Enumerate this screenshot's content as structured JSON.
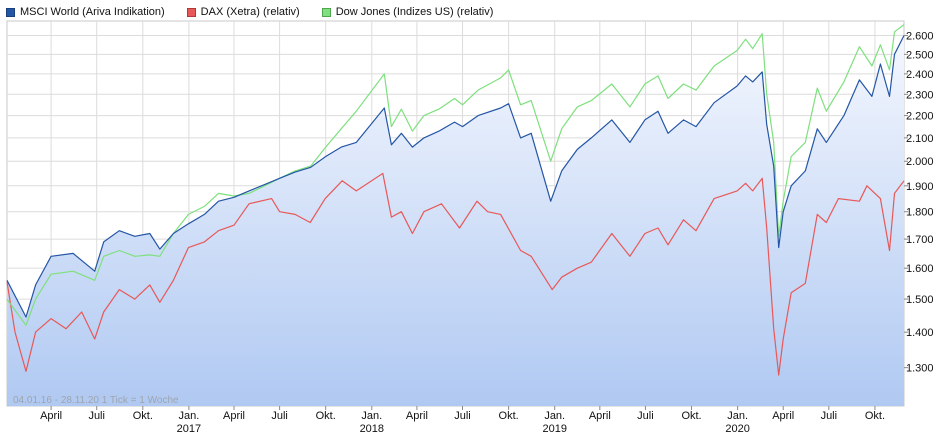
{
  "chart_data": {
    "type": "line",
    "legend": [
      {
        "label": "MSCI World (Ariva Indikation)",
        "color": "#2456a6"
      },
      {
        "label": "DAX (Xetra) (relativ)",
        "color": "#e85858"
      },
      {
        "label": "Dow Jones (Indizes US) (relativ)",
        "color": "#7ee07e"
      }
    ],
    "info_text": "04.01.16 - 28.11.20   1 Tick = 1 Woche",
    "y_axis": {
      "position": "right",
      "scale": "log",
      "range": [
        1200,
        2680
      ],
      "ticks": [
        1300,
        1400,
        1500,
        1600,
        1700,
        1800,
        1900,
        2000,
        2100,
        2200,
        2300,
        2400,
        2500,
        2600
      ],
      "tick_labels": [
        "1.300",
        "1.400",
        "1.500",
        "1.600",
        "1.700",
        "1.800",
        "1.900",
        "2.000",
        "2.100",
        "2.200",
        "2.300",
        "2.400",
        "2.500",
        "2.600"
      ]
    },
    "x_axis": {
      "range": [
        "2016-01-04",
        "2020-11-28"
      ],
      "ticks": [
        {
          "date": "2016-04-01",
          "label": "April",
          "year": ""
        },
        {
          "date": "2016-07-01",
          "label": "Juli",
          "year": ""
        },
        {
          "date": "2016-10-01",
          "label": "Okt.",
          "year": ""
        },
        {
          "date": "2017-01-01",
          "label": "Jan.",
          "year": "2017"
        },
        {
          "date": "2017-04-01",
          "label": "April",
          "year": ""
        },
        {
          "date": "2017-07-01",
          "label": "Juli",
          "year": ""
        },
        {
          "date": "2017-10-01",
          "label": "Okt.",
          "year": ""
        },
        {
          "date": "2018-01-01",
          "label": "Jan.",
          "year": "2018"
        },
        {
          "date": "2018-04-01",
          "label": "April",
          "year": ""
        },
        {
          "date": "2018-07-01",
          "label": "Juli",
          "year": ""
        },
        {
          "date": "2018-10-01",
          "label": "Okt.",
          "year": ""
        },
        {
          "date": "2019-01-01",
          "label": "Jan.",
          "year": "2019"
        },
        {
          "date": "2019-04-01",
          "label": "April",
          "year": ""
        },
        {
          "date": "2019-07-01",
          "label": "Juli",
          "year": ""
        },
        {
          "date": "2019-10-01",
          "label": "Okt.",
          "year": ""
        },
        {
          "date": "2020-01-01",
          "label": "Jan.",
          "year": "2020"
        },
        {
          "date": "2020-04-01",
          "label": "April",
          "year": ""
        },
        {
          "date": "2020-07-01",
          "label": "Juli",
          "year": ""
        },
        {
          "date": "2020-10-01",
          "label": "Okt.",
          "year": ""
        }
      ]
    },
    "grid": true,
    "legend_position": "top-left",
    "series": [
      {
        "name": "MSCI World (Ariva Indikation)",
        "color": "#2456a6",
        "filled": true,
        "points": [
          [
            "2016-01-04",
            1560
          ],
          [
            "2016-02-11",
            1445
          ],
          [
            "2016-03-01",
            1545
          ],
          [
            "2016-04-01",
            1640
          ],
          [
            "2016-05-15",
            1650
          ],
          [
            "2016-06-27",
            1590
          ],
          [
            "2016-07-15",
            1690
          ],
          [
            "2016-08-15",
            1730
          ],
          [
            "2016-09-15",
            1710
          ],
          [
            "2016-10-15",
            1720
          ],
          [
            "2016-11-04",
            1665
          ],
          [
            "2016-12-01",
            1720
          ],
          [
            "2016-12-31",
            1755
          ],
          [
            "2017-02-01",
            1790
          ],
          [
            "2017-03-01",
            1840
          ],
          [
            "2017-04-01",
            1855
          ],
          [
            "2017-05-01",
            1880
          ],
          [
            "2017-06-01",
            1905
          ],
          [
            "2017-07-01",
            1930
          ],
          [
            "2017-08-01",
            1955
          ],
          [
            "2017-09-01",
            1975
          ],
          [
            "2017-10-01",
            2020
          ],
          [
            "2017-11-01",
            2060
          ],
          [
            "2017-12-01",
            2080
          ],
          [
            "2018-01-26",
            2235
          ],
          [
            "2018-02-09",
            2070
          ],
          [
            "2018-03-01",
            2120
          ],
          [
            "2018-03-23",
            2060
          ],
          [
            "2018-04-15",
            2100
          ],
          [
            "2018-05-15",
            2130
          ],
          [
            "2018-06-15",
            2170
          ],
          [
            "2018-07-01",
            2150
          ],
          [
            "2018-08-01",
            2200
          ],
          [
            "2018-09-15",
            2235
          ],
          [
            "2018-10-01",
            2255
          ],
          [
            "2018-10-25",
            2100
          ],
          [
            "2018-11-15",
            2120
          ],
          [
            "2018-12-24",
            1840
          ],
          [
            "2019-01-15",
            1960
          ],
          [
            "2019-02-15",
            2050
          ],
          [
            "2019-03-15",
            2100
          ],
          [
            "2019-04-25",
            2180
          ],
          [
            "2019-05-31",
            2080
          ],
          [
            "2019-06-30",
            2180
          ],
          [
            "2019-07-26",
            2220
          ],
          [
            "2019-08-15",
            2120
          ],
          [
            "2019-09-15",
            2180
          ],
          [
            "2019-10-10",
            2150
          ],
          [
            "2019-11-15",
            2260
          ],
          [
            "2019-12-31",
            2340
          ],
          [
            "2020-01-17",
            2390
          ],
          [
            "2020-01-31",
            2360
          ],
          [
            "2020-02-19",
            2410
          ],
          [
            "2020-02-28",
            2160
          ],
          [
            "2020-03-13",
            1980
          ],
          [
            "2020-03-23",
            1670
          ],
          [
            "2020-04-01",
            1800
          ],
          [
            "2020-04-17",
            1900
          ],
          [
            "2020-05-15",
            1960
          ],
          [
            "2020-06-08",
            2140
          ],
          [
            "2020-06-26",
            2080
          ],
          [
            "2020-07-31",
            2200
          ],
          [
            "2020-08-31",
            2370
          ],
          [
            "2020-09-25",
            2290
          ],
          [
            "2020-10-12",
            2450
          ],
          [
            "2020-10-30",
            2290
          ],
          [
            "2020-11-09",
            2500
          ],
          [
            "2020-11-28",
            2600
          ]
        ]
      },
      {
        "name": "DAX (Xetra) (relativ)",
        "color": "#e85858",
        "filled": false,
        "points": [
          [
            "2016-01-04",
            1555
          ],
          [
            "2016-01-20",
            1400
          ],
          [
            "2016-02-11",
            1290
          ],
          [
            "2016-03-01",
            1400
          ],
          [
            "2016-04-01",
            1440
          ],
          [
            "2016-05-01",
            1410
          ],
          [
            "2016-06-01",
            1460
          ],
          [
            "2016-06-27",
            1380
          ],
          [
            "2016-07-15",
            1460
          ],
          [
            "2016-08-15",
            1530
          ],
          [
            "2016-09-15",
            1500
          ],
          [
            "2016-10-15",
            1545
          ],
          [
            "2016-11-04",
            1490
          ],
          [
            "2016-12-01",
            1560
          ],
          [
            "2016-12-31",
            1670
          ],
          [
            "2017-02-01",
            1690
          ],
          [
            "2017-03-01",
            1730
          ],
          [
            "2017-04-01",
            1750
          ],
          [
            "2017-05-01",
            1830
          ],
          [
            "2017-06-15",
            1850
          ],
          [
            "2017-07-01",
            1800
          ],
          [
            "2017-08-01",
            1790
          ],
          [
            "2017-08-31",
            1760
          ],
          [
            "2017-09-30",
            1850
          ],
          [
            "2017-11-03",
            1920
          ],
          [
            "2017-12-01",
            1880
          ],
          [
            "2018-01-23",
            1950
          ],
          [
            "2018-02-09",
            1780
          ],
          [
            "2018-03-01",
            1800
          ],
          [
            "2018-03-23",
            1720
          ],
          [
            "2018-04-15",
            1800
          ],
          [
            "2018-05-20",
            1830
          ],
          [
            "2018-06-25",
            1740
          ],
          [
            "2018-07-30",
            1840
          ],
          [
            "2018-08-20",
            1800
          ],
          [
            "2018-09-15",
            1790
          ],
          [
            "2018-10-25",
            1660
          ],
          [
            "2018-11-15",
            1640
          ],
          [
            "2018-12-27",
            1530
          ],
          [
            "2019-01-15",
            1570
          ],
          [
            "2019-02-15",
            1600
          ],
          [
            "2019-03-15",
            1620
          ],
          [
            "2019-04-25",
            1720
          ],
          [
            "2019-05-31",
            1640
          ],
          [
            "2019-06-30",
            1720
          ],
          [
            "2019-07-26",
            1740
          ],
          [
            "2019-08-15",
            1680
          ],
          [
            "2019-09-15",
            1770
          ],
          [
            "2019-10-10",
            1730
          ],
          [
            "2019-11-15",
            1850
          ],
          [
            "2019-12-31",
            1880
          ],
          [
            "2020-01-17",
            1910
          ],
          [
            "2020-01-31",
            1880
          ],
          [
            "2020-02-19",
            1930
          ],
          [
            "2020-02-28",
            1740
          ],
          [
            "2020-03-13",
            1410
          ],
          [
            "2020-03-23",
            1280
          ],
          [
            "2020-04-01",
            1380
          ],
          [
            "2020-04-17",
            1520
          ],
          [
            "2020-05-15",
            1550
          ],
          [
            "2020-06-08",
            1790
          ],
          [
            "2020-06-26",
            1760
          ],
          [
            "2020-07-20",
            1850
          ],
          [
            "2020-08-31",
            1840
          ],
          [
            "2020-09-15",
            1900
          ],
          [
            "2020-10-12",
            1850
          ],
          [
            "2020-10-30",
            1660
          ],
          [
            "2020-11-09",
            1870
          ],
          [
            "2020-11-28",
            1920
          ]
        ]
      },
      {
        "name": "Dow Jones (Indizes US) (relativ)",
        "color": "#7ee07e",
        "filled": false,
        "points": [
          [
            "2016-01-04",
            1500
          ],
          [
            "2016-02-11",
            1420
          ],
          [
            "2016-03-01",
            1500
          ],
          [
            "2016-04-01",
            1580
          ],
          [
            "2016-05-15",
            1590
          ],
          [
            "2016-06-27",
            1560
          ],
          [
            "2016-07-15",
            1640
          ],
          [
            "2016-08-15",
            1660
          ],
          [
            "2016-09-15",
            1640
          ],
          [
            "2016-10-15",
            1645
          ],
          [
            "2016-11-04",
            1640
          ],
          [
            "2016-12-01",
            1720
          ],
          [
            "2016-12-31",
            1790
          ],
          [
            "2017-02-01",
            1820
          ],
          [
            "2017-03-01",
            1870
          ],
          [
            "2017-04-01",
            1860
          ],
          [
            "2017-05-01",
            1870
          ],
          [
            "2017-06-01",
            1900
          ],
          [
            "2017-07-01",
            1930
          ],
          [
            "2017-08-01",
            1960
          ],
          [
            "2017-09-01",
            1980
          ],
          [
            "2017-10-01",
            2060
          ],
          [
            "2017-11-01",
            2140
          ],
          [
            "2017-12-01",
            2220
          ],
          [
            "2018-01-26",
            2400
          ],
          [
            "2018-02-09",
            2150
          ],
          [
            "2018-03-01",
            2230
          ],
          [
            "2018-03-23",
            2130
          ],
          [
            "2018-04-15",
            2200
          ],
          [
            "2018-05-15",
            2230
          ],
          [
            "2018-06-15",
            2280
          ],
          [
            "2018-07-01",
            2250
          ],
          [
            "2018-08-01",
            2320
          ],
          [
            "2018-09-15",
            2380
          ],
          [
            "2018-10-01",
            2420
          ],
          [
            "2018-10-25",
            2250
          ],
          [
            "2018-11-15",
            2270
          ],
          [
            "2018-12-24",
            2000
          ],
          [
            "2019-01-15",
            2140
          ],
          [
            "2019-02-15",
            2240
          ],
          [
            "2019-03-15",
            2270
          ],
          [
            "2019-04-25",
            2350
          ],
          [
            "2019-05-31",
            2240
          ],
          [
            "2019-06-30",
            2350
          ],
          [
            "2019-07-26",
            2390
          ],
          [
            "2019-08-15",
            2280
          ],
          [
            "2019-09-15",
            2350
          ],
          [
            "2019-10-10",
            2320
          ],
          [
            "2019-11-15",
            2440
          ],
          [
            "2019-12-31",
            2520
          ],
          [
            "2020-01-17",
            2580
          ],
          [
            "2020-01-31",
            2530
          ],
          [
            "2020-02-19",
            2610
          ],
          [
            "2020-02-28",
            2300
          ],
          [
            "2020-03-13",
            2080
          ],
          [
            "2020-03-23",
            1710
          ],
          [
            "2020-04-01",
            1840
          ],
          [
            "2020-04-17",
            2020
          ],
          [
            "2020-05-15",
            2080
          ],
          [
            "2020-06-08",
            2330
          ],
          [
            "2020-06-26",
            2220
          ],
          [
            "2020-07-31",
            2360
          ],
          [
            "2020-08-31",
            2540
          ],
          [
            "2020-09-25",
            2440
          ],
          [
            "2020-10-12",
            2550
          ],
          [
            "2020-10-30",
            2420
          ],
          [
            "2020-11-09",
            2620
          ],
          [
            "2020-11-28",
            2660
          ]
        ]
      }
    ]
  }
}
